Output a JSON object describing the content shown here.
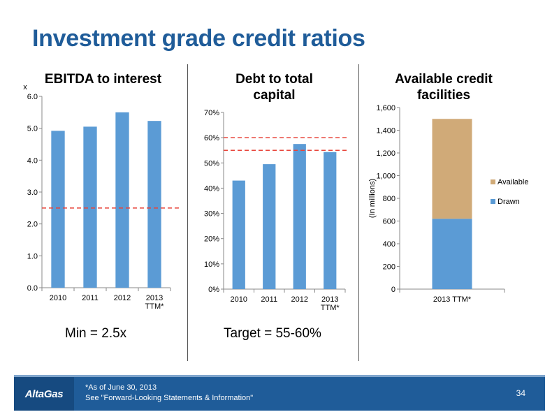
{
  "title": "Investment grade credit ratios",
  "chart_data": [
    {
      "type": "bar",
      "title": "EBITDA to interest",
      "ylabel": "x",
      "categories": [
        "2010",
        "2011",
        "2012",
        "2013\nTTM*"
      ],
      "values": [
        4.92,
        5.05,
        5.5,
        5.23
      ],
      "ylim": [
        0,
        6
      ],
      "yticks": [
        0,
        1,
        2,
        3,
        4,
        5,
        6
      ],
      "ytick_labels": [
        "0.0",
        "1.0",
        "2.0",
        "3.0",
        "4.0",
        "5.0",
        "6.0"
      ],
      "reference_lines": [
        2.5
      ],
      "bar_color": "#5b9bd5",
      "reference_color": "#e8443a",
      "note": "Min = 2.5x"
    },
    {
      "type": "bar",
      "title": "Debt to total capital",
      "categories": [
        "2010",
        "2011",
        "2012",
        "2013\nTTM*"
      ],
      "values": [
        43,
        49.5,
        57.5,
        54.3
      ],
      "ylim": [
        0,
        70
      ],
      "yticks": [
        0,
        10,
        20,
        30,
        40,
        50,
        60,
        70
      ],
      "ytick_labels": [
        "0%",
        "10%",
        "20%",
        "30%",
        "40%",
        "50%",
        "60%",
        "70%"
      ],
      "reference_lines": [
        55,
        60
      ],
      "bar_color": "#5b9bd5",
      "reference_color": "#e8443a",
      "note": "Target = 55-60%"
    },
    {
      "type": "bar",
      "stacked": true,
      "title": "Available credit facilities",
      "ylabel": "(In millions)",
      "categories": [
        "2013 TTM*"
      ],
      "series": [
        {
          "name": "Drawn",
          "values": [
            620
          ],
          "color": "#5b9bd5"
        },
        {
          "name": "Available",
          "values": [
            880
          ],
          "color": "#d0aa78"
        }
      ],
      "ylim": [
        0,
        1600
      ],
      "yticks": [
        0,
        200,
        400,
        600,
        800,
        1000,
        1200,
        1400,
        1600
      ],
      "ytick_labels": [
        "0",
        "200",
        "400",
        "600",
        "800",
        "1,000",
        "1,200",
        "1,400",
        "1,600"
      ],
      "legend": "right"
    }
  ],
  "footer": {
    "logo": "AltaGas",
    "line1": "*As of June 30, 2013",
    "line2": "See \"Forward-Looking Statements & Information\"",
    "page": "34"
  }
}
